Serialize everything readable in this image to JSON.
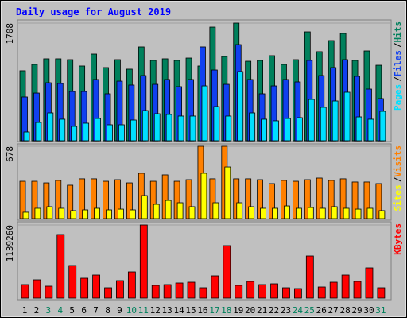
{
  "title": "Daily usage for August 2019",
  "chart_data": [
    {
      "type": "bar",
      "legend_separator": "/",
      "ylim": [
        0,
        1708
      ],
      "yticks": [
        1708
      ],
      "series": [
        {
          "name": "Pages",
          "color": "#00e0ff",
          "values": [
            127,
            265,
            404,
            312,
            208,
            254,
            323,
            231,
            231,
            300,
            438,
            392,
            381,
            358,
            358,
            796,
            496,
            358,
            1004,
            404,
            312,
            289,
            323,
            335,
            600,
            485,
            577,
            704,
            346,
            312,
            427
          ]
        },
        {
          "name": "Files",
          "color": "#1040f0",
          "values": [
            635,
            692,
            842,
            831,
            715,
            715,
            889,
            681,
            865,
            808,
            946,
            819,
            889,
            785,
            889,
            1362,
            1027,
            819,
            1396,
            889,
            681,
            796,
            889,
            854,
            1166,
            946,
            1062,
            1177,
            935,
            750,
            612
          ]
        },
        {
          "name": "Hits",
          "color": "#00805c",
          "values": [
            1016,
            1108,
            1189,
            1189,
            1177,
            1085,
            1258,
            1062,
            1177,
            1039,
            1362,
            1166,
            1189,
            1166,
            1200,
            1085,
            1650,
            1223,
            1708,
            1154,
            1166,
            1235,
            1108,
            1177,
            1581,
            1293,
            1454,
            1558,
            1166,
            1304,
            1096
          ]
        }
      ]
    },
    {
      "type": "bar",
      "legend_separator": "/",
      "ylim": [
        0,
        678
      ],
      "yticks": [
        678
      ],
      "series": [
        {
          "name": "Sites",
          "color": "#ffff00",
          "values": [
            60,
            97,
            112,
            97,
            75,
            82,
            97,
            82,
            89,
            82,
            216,
            134,
            171,
            149,
            112,
            425,
            149,
            484,
            149,
            112,
            97,
            97,
            119,
            97,
            104,
            97,
            112,
            97,
            89,
            97,
            75
          ]
        },
        {
          "name": "Visits",
          "color": "#ff8000",
          "values": [
            350,
            350,
            335,
            358,
            313,
            373,
            373,
            350,
            365,
            335,
            425,
            350,
            410,
            350,
            365,
            678,
            373,
            678,
            373,
            373,
            365,
            328,
            358,
            350,
            365,
            380,
            358,
            373,
            343,
            343,
            328
          ]
        }
      ]
    },
    {
      "type": "bar",
      "ylim": [
        0,
        1139260
      ],
      "yticks": [
        1139260
      ],
      "categories": [
        "1",
        "2",
        "3",
        "4",
        "5",
        "6",
        "7",
        "8",
        "9",
        "10",
        "11",
        "12",
        "13",
        "14",
        "15",
        "16",
        "17",
        "18",
        "19",
        "20",
        "21",
        "22",
        "23",
        "24",
        "25",
        "26",
        "27",
        "28",
        "29",
        "30",
        "31"
      ],
      "category_colors": [
        "#000000",
        "#000000",
        "#00805c",
        "#00805c",
        "#000000",
        "#000000",
        "#000000",
        "#000000",
        "#000000",
        "#00805c",
        "#00805c",
        "#000000",
        "#000000",
        "#000000",
        "#000000",
        "#000000",
        "#00805c",
        "#00805c",
        "#000000",
        "#000000",
        "#000000",
        "#000000",
        "#000000",
        "#00805c",
        "#00805c",
        "#000000",
        "#000000",
        "#000000",
        "#000000",
        "#000000",
        "#00805c"
      ],
      "series": [
        {
          "name": "KBytes",
          "color": "#ff0000",
          "values": [
            210511,
            284809,
            185745,
            990640,
            507703,
            309575,
            359107,
            160979,
            272426,
            408639,
            1139260,
            198128,
            210511,
            235277,
            247660,
            160979,
            346724,
            817278,
            198128,
            260043,
            210511,
            222894,
            160979,
            148596,
            656299,
            173362,
            247660,
            359107,
            260043,
            470554,
            160979
          ]
        }
      ]
    }
  ]
}
